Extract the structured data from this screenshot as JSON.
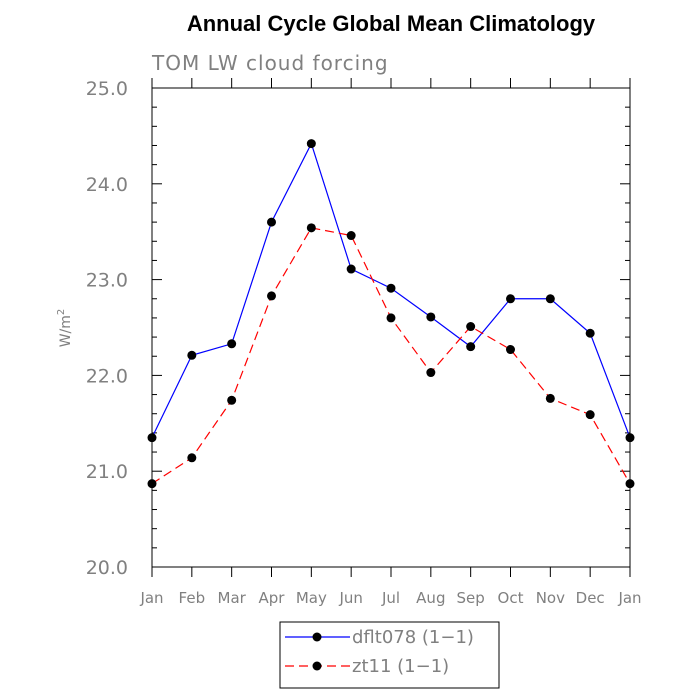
{
  "chart_data": {
    "type": "line",
    "title": "Annual Cycle Global Mean Climatology",
    "subtitle": "TOM LW cloud forcing",
    "xlabel": "",
    "ylabel": "W/m",
    "ylabel_superscript": "2",
    "categories": [
      "Jan",
      "Feb",
      "Mar",
      "Apr",
      "May",
      "Jun",
      "Jul",
      "Aug",
      "Sep",
      "Oct",
      "Nov",
      "Dec",
      "Jan"
    ],
    "ylim": [
      20.0,
      25.0
    ],
    "yticks": [
      20.0,
      21.0,
      22.0,
      23.0,
      24.0,
      25.0
    ],
    "ytick_labels": [
      "20.0",
      "21.0",
      "22.0",
      "23.0",
      "24.0",
      "25.0"
    ],
    "y_minor_step": 0.2,
    "grid": false,
    "legend_position": "bottom-center",
    "series": [
      {
        "name": "dflt078 (1−1)",
        "color": "#0000ff",
        "dash": "solid",
        "marker": "filled-circle",
        "values": [
          21.35,
          22.21,
          22.33,
          23.6,
          24.42,
          23.11,
          22.91,
          22.61,
          22.3,
          22.8,
          22.8,
          22.44,
          21.35
        ]
      },
      {
        "name": "zt11 (1−1)",
        "color": "#ff0000",
        "dash": "dashed",
        "marker": "filled-circle",
        "values": [
          20.87,
          21.14,
          21.74,
          22.83,
          23.54,
          23.46,
          22.6,
          22.03,
          22.51,
          22.27,
          21.76,
          21.59,
          20.87
        ]
      }
    ]
  }
}
